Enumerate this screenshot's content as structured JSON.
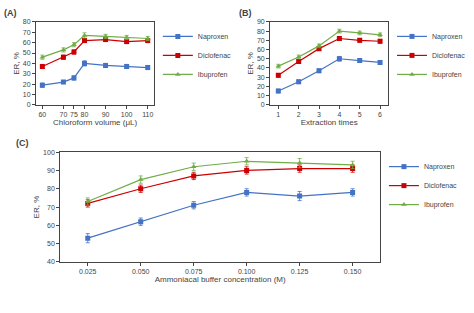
{
  "chart_data": [
    {
      "type": "line",
      "title": "(A)",
      "xlabel": "Chloroform volume (μL)",
      "ylabel": "ER, %",
      "x": [
        60,
        70,
        75,
        80,
        90,
        100,
        110
      ],
      "series": [
        {
          "name": "Naproxen",
          "color": "#4472c4",
          "marker": "square",
          "values": [
            19,
            22,
            26,
            40,
            38,
            37,
            36
          ],
          "errors": [
            2,
            1.5,
            2,
            2.5,
            2,
            2,
            2
          ]
        },
        {
          "name": "Diclofenac",
          "color": "#cc0000",
          "marker": "square",
          "values": [
            37,
            46,
            51,
            62,
            63,
            61,
            62
          ],
          "errors": [
            2,
            2,
            2,
            2,
            2,
            2,
            2
          ]
        },
        {
          "name": "Ibuprofen",
          "color": "#70ad47",
          "marker": "triangle-up",
          "values": [
            46,
            53,
            58,
            67,
            66,
            65,
            64
          ],
          "errors": [
            2,
            2,
            2,
            2.5,
            2,
            2,
            2
          ]
        }
      ],
      "xlim": [
        57,
        113
      ],
      "xticks": [
        60,
        70,
        75,
        80,
        90,
        100,
        110
      ],
      "ylim": [
        0,
        80
      ],
      "yticks": [
        0,
        10,
        20,
        30,
        40,
        50,
        60,
        70,
        80
      ],
      "grid": false,
      "legend": "right"
    },
    {
      "type": "line",
      "title": "(B)",
      "xlabel": "Extraction times",
      "ylabel": "ER, %",
      "x": [
        1,
        2,
        3,
        4,
        5,
        6
      ],
      "series": [
        {
          "name": "Naproxen",
          "color": "#4472c4",
          "marker": "square",
          "values": [
            15,
            25,
            37,
            50,
            48,
            46
          ],
          "errors": [
            2,
            2,
            2,
            2.5,
            2,
            2
          ]
        },
        {
          "name": "Diclofenac",
          "color": "#cc0000",
          "marker": "square",
          "values": [
            32,
            47,
            61,
            72,
            70,
            69
          ],
          "errors": [
            2,
            2,
            2,
            2,
            2,
            2
          ]
        },
        {
          "name": "Ibuprofen",
          "color": "#70ad47",
          "marker": "triangle-up",
          "values": [
            42,
            52,
            64,
            80,
            78,
            76
          ],
          "errors": [
            2,
            2,
            2,
            2,
            2,
            2
          ]
        }
      ],
      "xlim": [
        0.6,
        6.4
      ],
      "xticks": [
        1,
        2,
        3,
        4,
        5,
        6
      ],
      "ylim": [
        0,
        90
      ],
      "yticks": [
        0,
        10,
        20,
        30,
        40,
        50,
        60,
        70,
        80,
        90
      ],
      "grid": false,
      "legend": "right"
    },
    {
      "type": "line",
      "title": "(C)",
      "xlabel": "Ammoniacal buffer concentration (M)",
      "ylabel": "ER, %",
      "x": [
        0.025,
        0.05,
        0.075,
        0.1,
        0.125,
        0.15
      ],
      "series": [
        {
          "name": "Naproxen",
          "color": "#4472c4",
          "marker": "square",
          "values": [
            53,
            62,
            71,
            78,
            76,
            78
          ],
          "errors": [
            2.5,
            2,
            2,
            2,
            2.5,
            2
          ]
        },
        {
          "name": "Diclofenac",
          "color": "#cc0000",
          "marker": "square",
          "values": [
            72,
            80,
            87,
            90,
            91,
            91
          ],
          "errors": [
            2,
            2,
            2,
            2,
            2,
            2
          ]
        },
        {
          "name": "Ibuprofen",
          "color": "#70ad47",
          "marker": "triangle-up",
          "values": [
            73,
            85,
            92,
            95,
            94,
            93
          ],
          "errors": [
            2,
            2,
            2,
            2,
            2.5,
            2
          ]
        }
      ],
      "xlim": [
        0.012,
        0.163
      ],
      "xticks": [
        0.025,
        {
          "value": 0.05,
          "label": "0.050"
        },
        0.075,
        {
          "value": 0.1,
          "label": "0.100"
        },
        0.125,
        {
          "value": 0.15,
          "label": "0.150"
        }
      ],
      "ylim": [
        40,
        100
      ],
      "yticks": [
        40,
        50,
        60,
        70,
        80,
        90,
        100
      ],
      "grid": false,
      "legend": "right"
    }
  ]
}
